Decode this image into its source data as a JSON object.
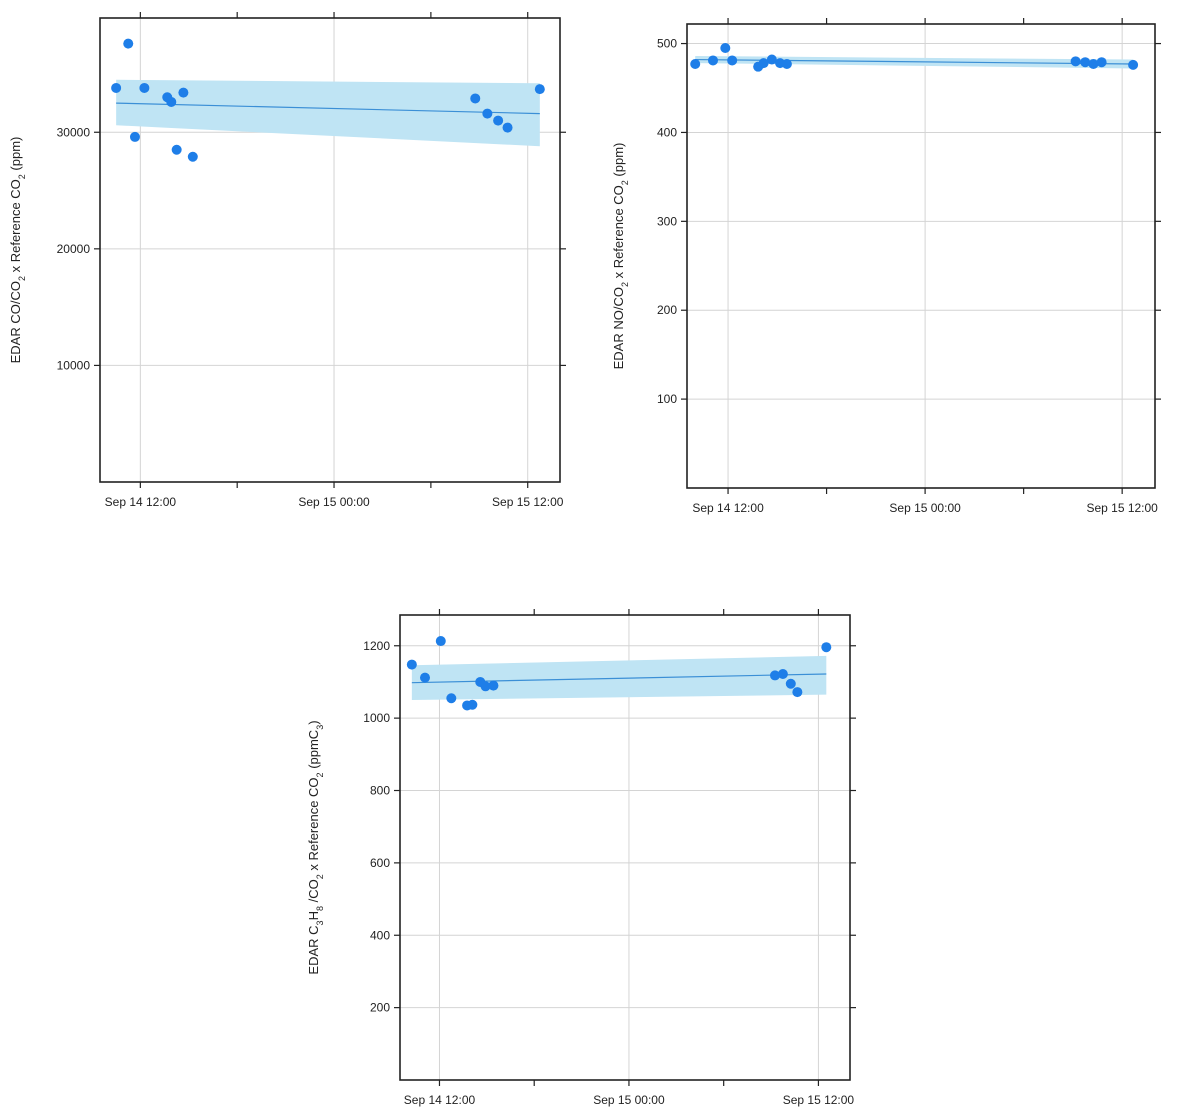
{
  "colors": {
    "point": "#1e7ee8",
    "fit_line": "#3b8fd6",
    "ci_band": "#bfe4f4",
    "grid": "#d4d4d4",
    "frame": "#222222"
  },
  "chart_data": [
    {
      "type": "scatter",
      "ylabel": "EDAR CO/CO₂ x Reference CO₂ (ppm)",
      "x_ticks": [
        "Sep 14 12:00",
        "Sep 15 00:00",
        "Sep 15 12:00"
      ],
      "y_ticks": [
        "10000",
        "20000",
        "30000"
      ],
      "xlim": [
        "2016-09-14 09:30",
        "2016-09-15 14:00"
      ],
      "ylim": [
        0,
        39800
      ],
      "grid": true,
      "points": [
        {
          "x": "2016-09-14 10:30",
          "y": 33800
        },
        {
          "x": "2016-09-14 11:15",
          "y": 37600
        },
        {
          "x": "2016-09-14 11:40",
          "y": 29600
        },
        {
          "x": "2016-09-14 12:15",
          "y": 33800
        },
        {
          "x": "2016-09-14 13:40",
          "y": 33000
        },
        {
          "x": "2016-09-14 13:55",
          "y": 32600
        },
        {
          "x": "2016-09-14 14:15",
          "y": 28500
        },
        {
          "x": "2016-09-14 14:40",
          "y": 33400
        },
        {
          "x": "2016-09-14 15:15",
          "y": 27900
        },
        {
          "x": "2016-09-15 08:45",
          "y": 32900
        },
        {
          "x": "2016-09-15 09:30",
          "y": 31600
        },
        {
          "x": "2016-09-15 10:10",
          "y": 31000
        },
        {
          "x": "2016-09-15 10:45",
          "y": 30400
        },
        {
          "x": "2016-09-15 12:45",
          "y": 33700
        }
      ],
      "fit": {
        "x": [
          "2016-09-14 10:30",
          "2016-09-15 12:45"
        ],
        "y": [
          32500,
          31600
        ],
        "lower": [
          30600,
          28800
        ],
        "upper": [
          34500,
          34200
        ]
      }
    },
    {
      "type": "scatter",
      "ylabel": "EDAR NO/CO₂ x Reference CO₂ (ppm)",
      "x_ticks": [
        "Sep 14 12:00",
        "Sep 15 00:00",
        "Sep 15 12:00"
      ],
      "y_ticks": [
        "100",
        "200",
        "300",
        "400",
        "500"
      ],
      "xlim": [
        "2016-09-14 09:30",
        "2016-09-15 14:00"
      ],
      "ylim": [
        0,
        522
      ],
      "grid": true,
      "points": [
        {
          "x": "2016-09-14 10:00",
          "y": 477
        },
        {
          "x": "2016-09-14 11:05",
          "y": 481
        },
        {
          "x": "2016-09-14 11:50",
          "y": 495
        },
        {
          "x": "2016-09-14 12:15",
          "y": 481
        },
        {
          "x": "2016-09-14 13:50",
          "y": 474
        },
        {
          "x": "2016-09-14 14:10",
          "y": 478
        },
        {
          "x": "2016-09-14 14:40",
          "y": 482
        },
        {
          "x": "2016-09-14 15:10",
          "y": 478
        },
        {
          "x": "2016-09-14 15:35",
          "y": 477
        },
        {
          "x": "2016-09-15 09:10",
          "y": 480
        },
        {
          "x": "2016-09-15 09:45",
          "y": 479
        },
        {
          "x": "2016-09-15 10:15",
          "y": 477
        },
        {
          "x": "2016-09-15 10:45",
          "y": 479
        },
        {
          "x": "2016-09-15 12:40",
          "y": 476
        }
      ],
      "fit": {
        "x": [
          "2016-09-14 10:00",
          "2016-09-15 12:40"
        ],
        "y": [
          482,
          477
        ],
        "lower": [
          478,
          472
        ],
        "upper": [
          486,
          482
        ]
      }
    },
    {
      "type": "scatter",
      "ylabel": "EDAR C₃H₈ /CO₂ x Reference CO₂ (ppmC₃)",
      "x_ticks": [
        "Sep 14 12:00",
        "Sep 15 00:00",
        "Sep 15 12:00"
      ],
      "y_ticks": [
        "200",
        "400",
        "600",
        "800",
        "1000",
        "1200"
      ],
      "xlim": [
        "2016-09-14 09:30",
        "2016-09-15 14:00"
      ],
      "ylim": [
        0,
        1285
      ],
      "grid": true,
      "points": [
        {
          "x": "2016-09-14 10:15",
          "y": 1148
        },
        {
          "x": "2016-09-14 11:05",
          "y": 1112
        },
        {
          "x": "2016-09-14 12:05",
          "y": 1213
        },
        {
          "x": "2016-09-14 12:45",
          "y": 1055
        },
        {
          "x": "2016-09-14 13:45",
          "y": 1035
        },
        {
          "x": "2016-09-14 14:05",
          "y": 1037
        },
        {
          "x": "2016-09-14 14:35",
          "y": 1100
        },
        {
          "x": "2016-09-14 14:55",
          "y": 1088
        },
        {
          "x": "2016-09-14 15:25",
          "y": 1090
        },
        {
          "x": "2016-09-15 09:15",
          "y": 1118
        },
        {
          "x": "2016-09-15 09:45",
          "y": 1122
        },
        {
          "x": "2016-09-15 10:15",
          "y": 1095
        },
        {
          "x": "2016-09-15 10:40",
          "y": 1072
        },
        {
          "x": "2016-09-15 12:30",
          "y": 1196
        }
      ],
      "fit": {
        "x": [
          "2016-09-14 10:15",
          "2016-09-15 12:30"
        ],
        "y": [
          1098,
          1122
        ],
        "lower": [
          1050,
          1065
        ],
        "upper": [
          1146,
          1172
        ]
      }
    }
  ]
}
